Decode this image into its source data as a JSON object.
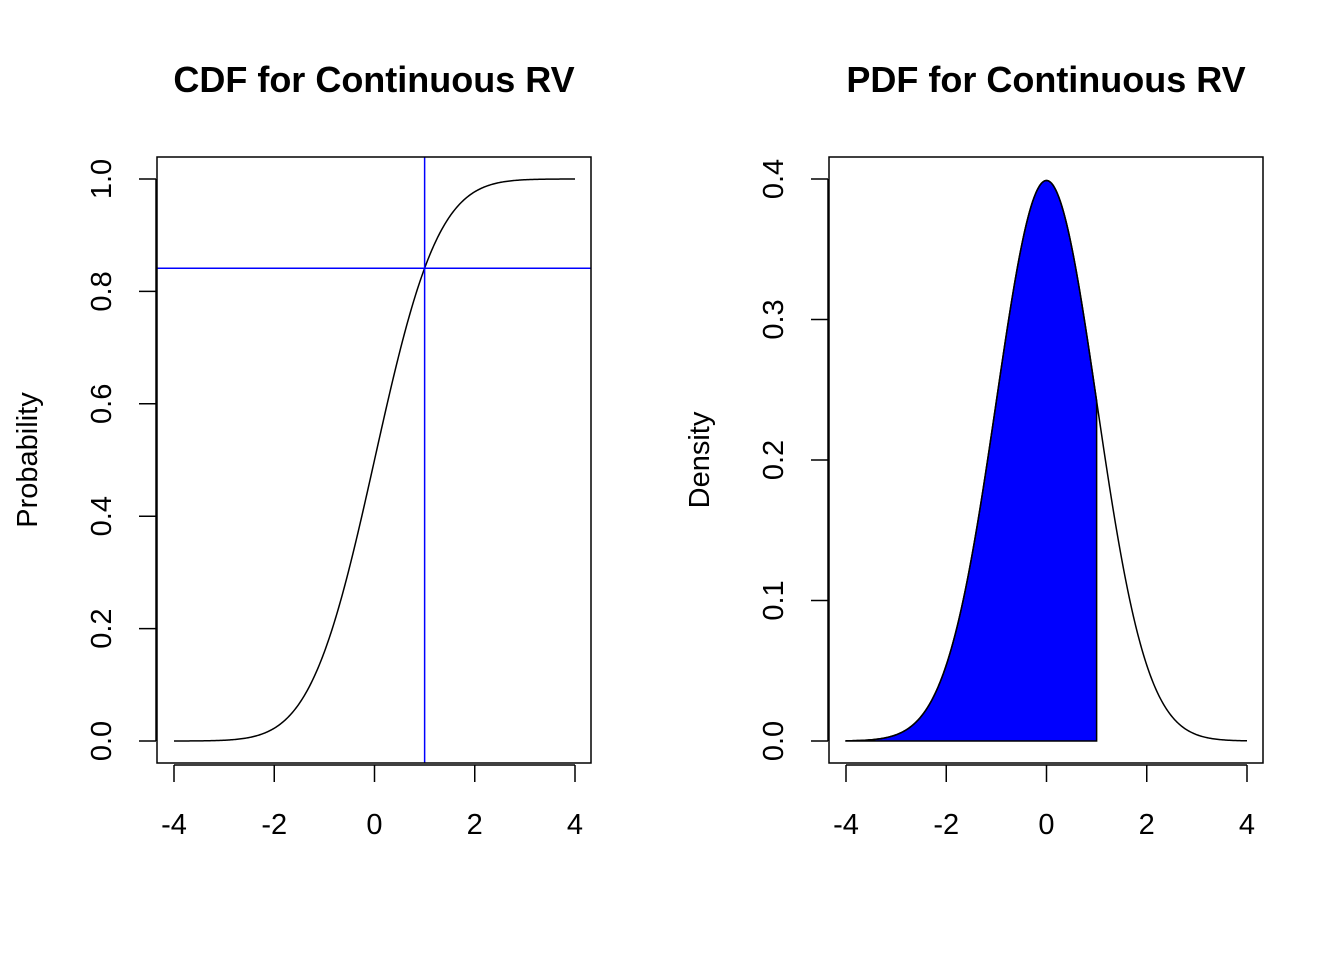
{
  "chart_data": [
    {
      "type": "line",
      "title": "CDF for Continuous RV",
      "xlabel": "",
      "ylabel": "Probability",
      "xlim": [
        -4,
        4
      ],
      "ylim": [
        0,
        1
      ],
      "xticks": [
        "-4",
        "-2",
        "0",
        "2",
        "4"
      ],
      "yticks": [
        "0.0",
        "0.2",
        "0.4",
        "0.6",
        "0.8",
        "1.0"
      ],
      "curve": "standard normal CDF",
      "x_range": [
        -4,
        4
      ],
      "reference_lines": {
        "vertical_x": 1,
        "horizontal_y": 0.8413,
        "color": "#0000ff"
      },
      "line_color": "#000000",
      "grid": false
    },
    {
      "type": "area",
      "title": "PDF for Continuous RV",
      "xlabel": "",
      "ylabel": "Density",
      "xlim": [
        -4,
        4
      ],
      "ylim": [
        0,
        0.4
      ],
      "xticks": [
        "-4",
        "-2",
        "0",
        "2",
        "4"
      ],
      "yticks": [
        "0.0",
        "0.1",
        "0.2",
        "0.3",
        "0.4"
      ],
      "curve": "standard normal PDF",
      "x_range": [
        -4,
        4
      ],
      "shaded_region": {
        "from": -4,
        "to": 1,
        "color": "#0000ff"
      },
      "line_color": "#000000",
      "grid": false
    }
  ]
}
